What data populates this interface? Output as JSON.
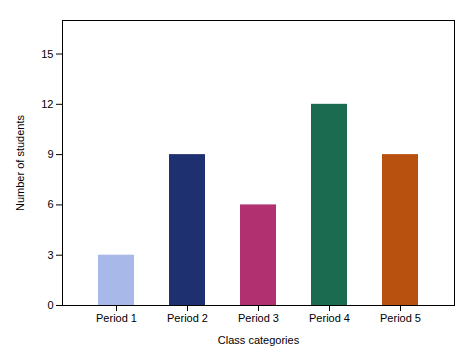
{
  "chart_data": {
    "type": "bar",
    "categories": [
      "Period 1",
      "Period 2",
      "Period 3",
      "Period 4",
      "Period 5"
    ],
    "values": [
      3,
      9,
      6,
      12,
      9
    ],
    "colors": [
      "#a8b8e8",
      "#1e3070",
      "#b03070",
      "#1a6b50",
      "#b85010"
    ],
    "xlabel": "Class categories",
    "ylabel": "Number of students",
    "ylim": [
      0,
      17
    ],
    "yticks": [
      0,
      3,
      6,
      9,
      12,
      15
    ],
    "grid": false
  }
}
